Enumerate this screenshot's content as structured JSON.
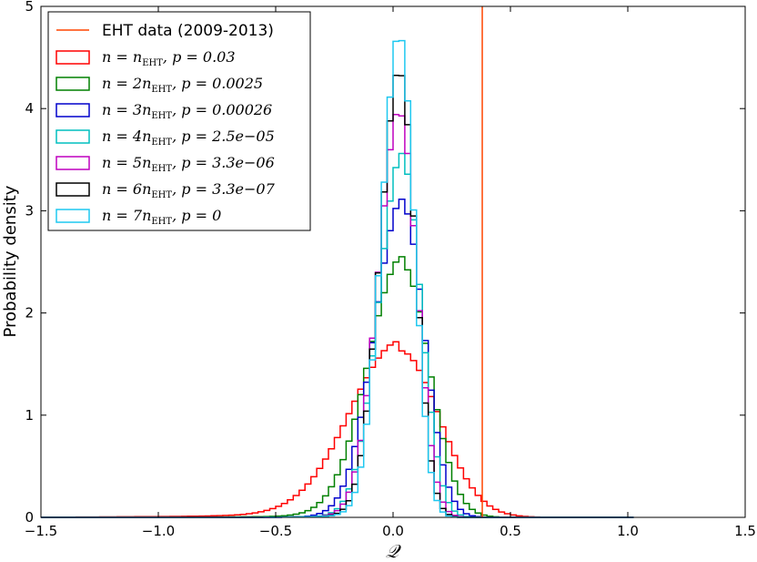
{
  "chart_data": {
    "type": "histogram",
    "title": "",
    "xlabel": "𝒬",
    "ylabel": "Probability density",
    "xlim": [
      -1.5,
      1.5
    ],
    "ylim": [
      0,
      5
    ],
    "grid": false,
    "legend_position": "top-left",
    "x_ticks": [
      -1.5,
      -1.0,
      -0.5,
      0.0,
      0.5,
      1.0,
      1.5
    ],
    "x_tick_labels": [
      "−1.5",
      "−1.0",
      "−0.5",
      "0.0",
      "0.5",
      "1.0",
      "1.5"
    ],
    "y_ticks": [
      0,
      1,
      2,
      3,
      4,
      5
    ],
    "y_tick_labels": [
      "0",
      "1",
      "2",
      "3",
      "4",
      "5"
    ],
    "vline": {
      "name": "EHT data (2009-2013)",
      "x": 0.38,
      "color": "#ff4500"
    },
    "series": [
      {
        "name": "n = n_EHT, p = 0.03",
        "label_parts": [
          "n = n",
          "EHT",
          ", p = 0.03"
        ],
        "color": "#ff0000",
        "center": 0.03,
        "sigma": 0.19,
        "peak": 1.63,
        "tail": "heavy"
      },
      {
        "name": "n = 2n_EHT, p = 0.0025",
        "label_parts": [
          "n = 2n",
          "EHT",
          ", p = 0.0025"
        ],
        "color": "#008000",
        "center": 0.04,
        "sigma": 0.13,
        "peak": 2.47,
        "tail": "medium"
      },
      {
        "name": "n = 3n_EHT, p = 0.00026",
        "label_parts": [
          "n = 3n",
          "EHT",
          ", p = 0.00026"
        ],
        "color": "#0000cc",
        "center": 0.04,
        "sigma": 0.105,
        "peak": 3.06,
        "tail": "light"
      },
      {
        "name": "n = 4n_EHT, p = 2.5e−05",
        "label_parts": [
          "n = 4n",
          "EHT",
          ", p = 2.5e−05"
        ],
        "color": "#00bfbf",
        "center": 0.04,
        "sigma": 0.09,
        "peak": 3.5,
        "tail": "light"
      },
      {
        "name": "n = 5n_EHT, p = 3.3e−06",
        "label_parts": [
          "n = 5n",
          "EHT",
          ", p = 3.3e−06"
        ],
        "color": "#bf00bf",
        "center": 0.03,
        "sigma": 0.082,
        "peak": 3.95,
        "tail": "light"
      },
      {
        "name": "n = 6n_EHT, p = 3.3e−07",
        "label_parts": [
          "n = 6n",
          "EHT",
          ", p = 3.3e−07"
        ],
        "color": "#000000",
        "center": 0.03,
        "sigma": 0.075,
        "peak": 4.35,
        "tail": "light"
      },
      {
        "name": "n = 7n_EHT, p = 0",
        "label_parts": [
          "n = 7n",
          "EHT",
          ", p = 0"
        ],
        "color": "#1ec8f0",
        "center": 0.03,
        "sigma": 0.07,
        "peak": 4.7,
        "tail": "light"
      }
    ]
  }
}
